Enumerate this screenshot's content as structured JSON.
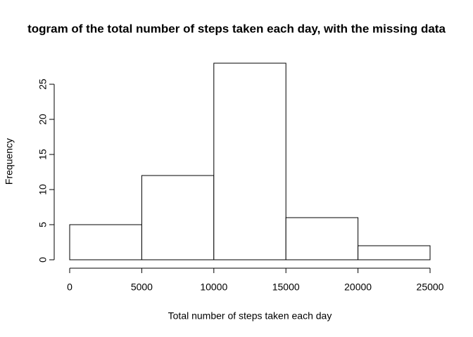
{
  "chart_data": {
    "type": "histogram",
    "title": "togram of the total number of steps taken each day, with the missing data",
    "x_label": "Total number of steps taken each day",
    "y_label": "Frequency",
    "bins": [
      0,
      5000,
      10000,
      15000,
      20000,
      25000
    ],
    "values": [
      5,
      12,
      28,
      6,
      2
    ],
    "color": "#ffffff",
    "edge_color": "#000000",
    "xlim": [
      0,
      25000
    ],
    "xticks": [
      0,
      5000,
      10000,
      15000,
      20000,
      25000
    ],
    "ylim": [
      0,
      28
    ],
    "yticks": [
      0,
      5,
      10,
      15,
      20,
      25
    ]
  }
}
